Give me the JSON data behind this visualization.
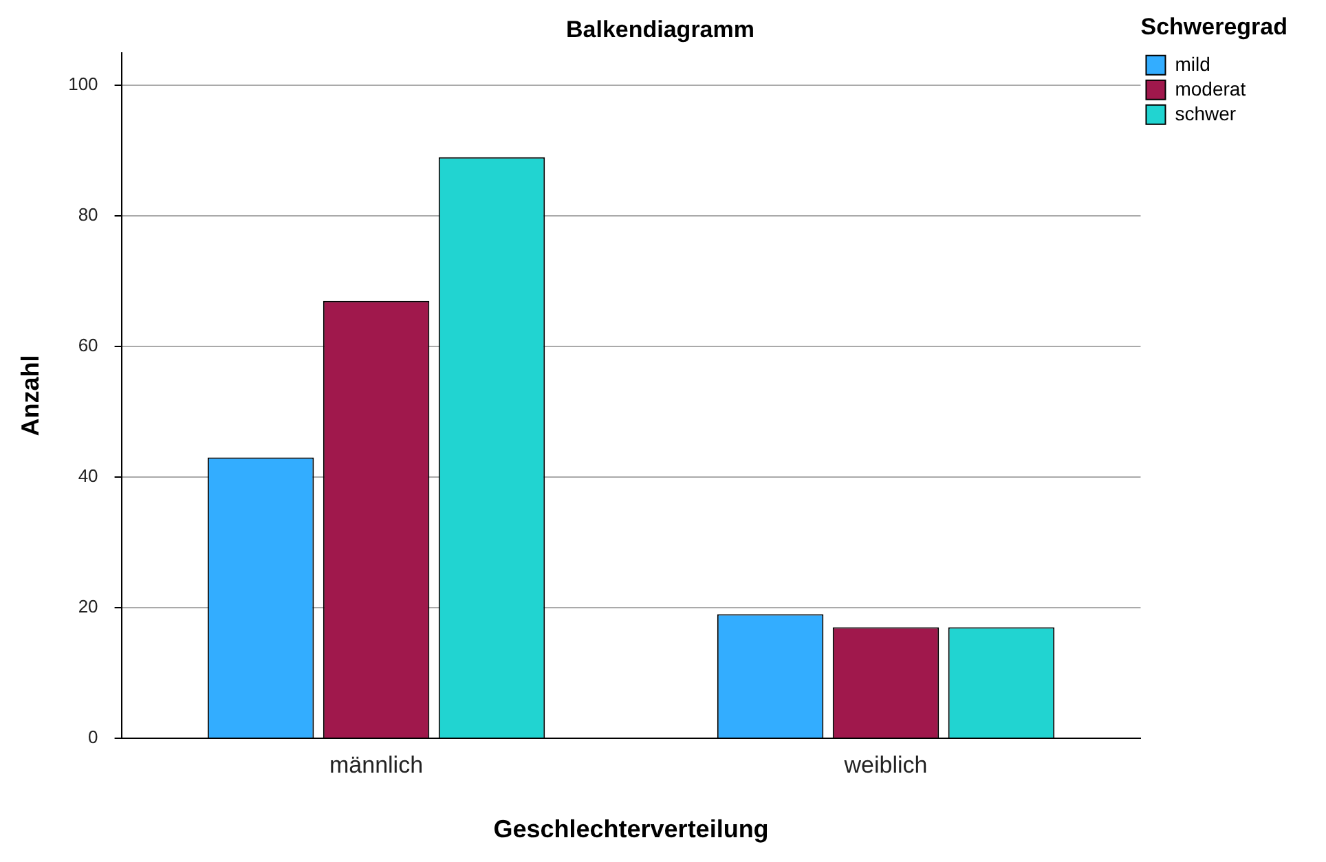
{
  "chart_data": {
    "type": "bar",
    "title": "Balkendiagramm",
    "xlabel": "Geschlechterverteilung",
    "ylabel": "Anzahl",
    "legend_title": "Schweregrad",
    "categories": [
      "männlich",
      "weiblich"
    ],
    "series": [
      {
        "name": "mild",
        "color": "#33adff",
        "values": [
          43,
          19
        ]
      },
      {
        "name": "moderat",
        "color": "#a0184c",
        "values": [
          67,
          17
        ]
      },
      {
        "name": "schwer",
        "color": "#21d4d1",
        "values": [
          89,
          17
        ]
      }
    ],
    "ylim": [
      0,
      105
    ],
    "yticks": [
      0,
      20,
      40,
      60,
      80,
      100
    ],
    "grid": "y",
    "legend": "top right"
  }
}
